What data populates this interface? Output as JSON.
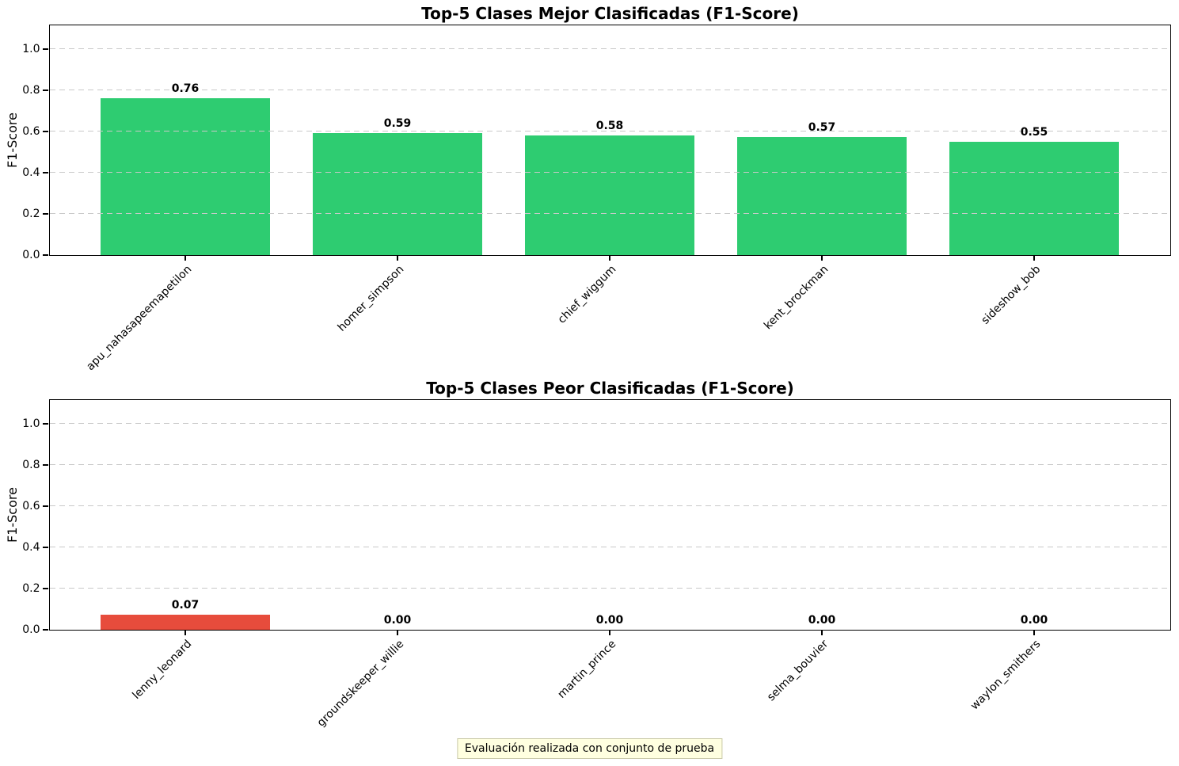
{
  "chart_data": [
    {
      "type": "bar",
      "title": "Top-5 Clases Mejor Clasificadas (F1-Score)",
      "xlabel": "",
      "ylabel": "F1-Score",
      "categories": [
        "apu_nahasapeemapetilon",
        "homer_simpson",
        "chief_wiggum",
        "kent_brockman",
        "sideshow_bob"
      ],
      "values": [
        0.76,
        0.59,
        0.58,
        0.57,
        0.55
      ],
      "value_labels": [
        "0.76",
        "0.59",
        "0.58",
        "0.57",
        "0.55"
      ],
      "bar_color": "#2ecc71",
      "ylim": [
        0,
        1.1154
      ],
      "yticks": [
        0.0,
        0.2,
        0.4,
        0.6,
        0.8,
        1.0
      ],
      "ytick_labels": [
        "0.0",
        "0.2",
        "0.4",
        "0.6",
        "0.8",
        "1.0"
      ],
      "xtick_rotation": 45,
      "grid": "horizontal-dashed-above-bars",
      "legend": "none"
    },
    {
      "type": "bar",
      "title": "Top-5 Clases Peor Clasificadas (F1-Score)",
      "xlabel": "",
      "ylabel": "F1-Score",
      "categories": [
        "lenny_leonard",
        "groundskeeper_willie",
        "martin_prince",
        "selma_bouvier",
        "waylon_smithers"
      ],
      "values": [
        0.07,
        0.0,
        0.0,
        0.0,
        0.0
      ],
      "value_labels": [
        "0.07",
        "0.00",
        "0.00",
        "0.00",
        "0.00"
      ],
      "bar_color": "#e74c3c",
      "ylim": [
        0,
        1.1154
      ],
      "yticks": [
        0.0,
        0.2,
        0.4,
        0.6,
        0.8,
        1.0
      ],
      "ytick_labels": [
        "0.0",
        "0.2",
        "0.4",
        "0.6",
        "0.8",
        "1.0"
      ],
      "xtick_rotation": 45,
      "grid": "horizontal-dashed-above-bars",
      "legend": "none"
    }
  ],
  "footer": {
    "text": "Evaluación realizada con conjunto de prueba",
    "background_color": "#ffffe0"
  },
  "colors": {
    "good_bar": "#2ecc71",
    "bad_bar": "#e74c3c",
    "gridline": "#c9c9c9",
    "text": "#000000"
  }
}
